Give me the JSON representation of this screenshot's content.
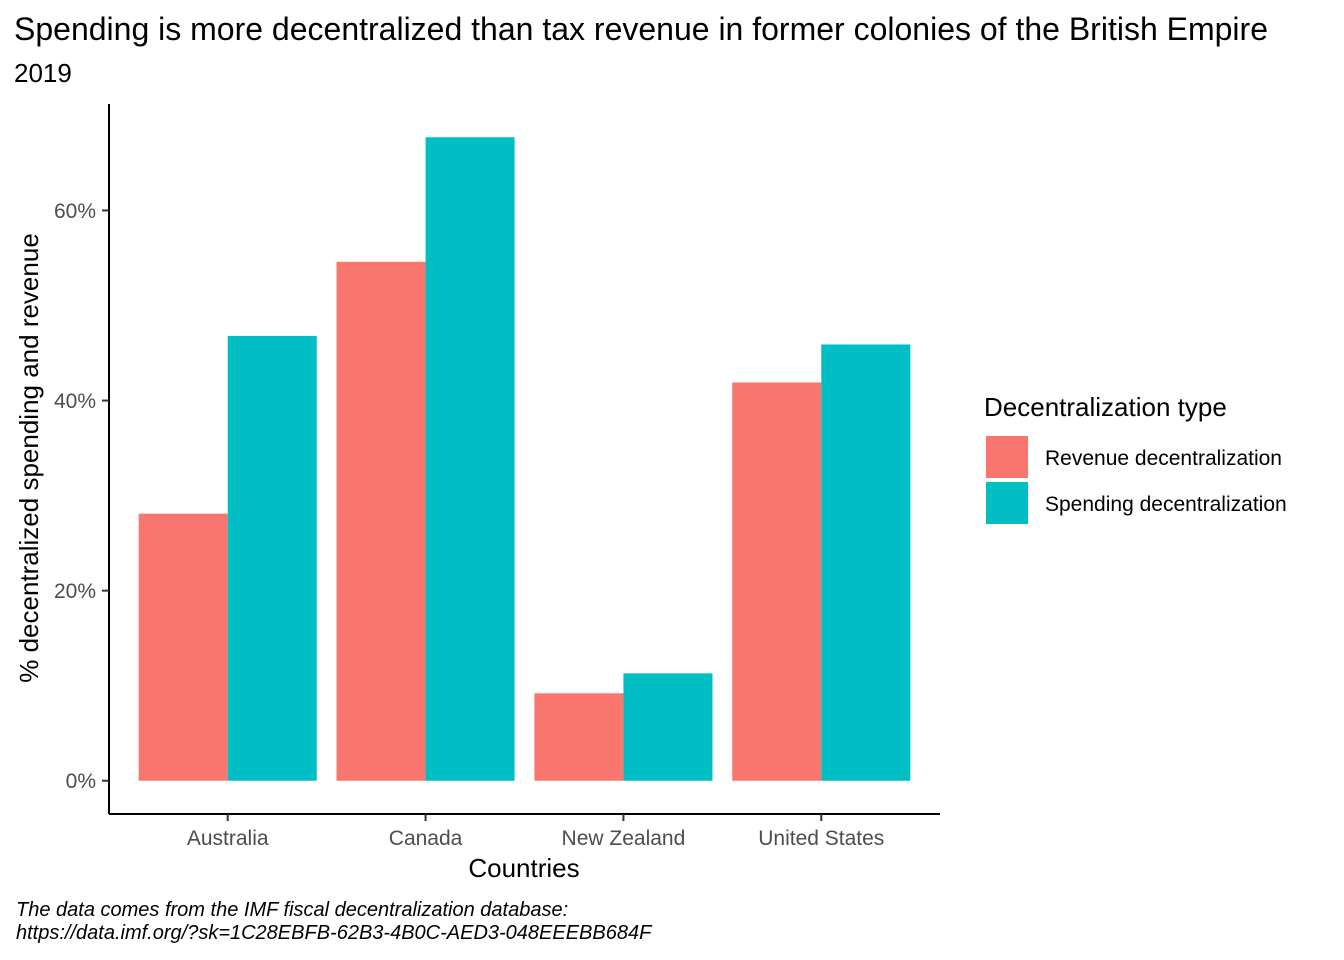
{
  "chart_data": {
    "type": "bar",
    "title": "Spending is more decentralized than tax revenue in former colonies of the British Empire",
    "subtitle": "2019",
    "xlabel": "Countries",
    "ylabel": "% decentralized spending and revenue",
    "categories": [
      "Australia",
      "Canada",
      "New Zealand",
      "United States"
    ],
    "series": [
      {
        "name": "Revenue decentralization",
        "values": [
          28.1,
          54.6,
          9.2,
          41.9
        ],
        "color": "#F8766D"
      },
      {
        "name": "Spending decentralization",
        "values": [
          46.8,
          67.7,
          11.3,
          45.9
        ],
        "color": "#00BFC4"
      }
    ],
    "ylim": [
      -3.5,
      71.2
    ],
    "yticks": [
      0,
      20,
      40,
      60
    ],
    "ytick_labels": [
      "0%",
      "20%",
      "40%",
      "60%"
    ],
    "grid": false,
    "legend": {
      "title": "Decentralization type",
      "placement": "right"
    },
    "caption": [
      "The data comes from the IMF fiscal decentralization database:",
      "https://data.imf.org/?sk=1C28EBFB-62B3-4B0C-AED3-048EEEBB684F"
    ]
  }
}
